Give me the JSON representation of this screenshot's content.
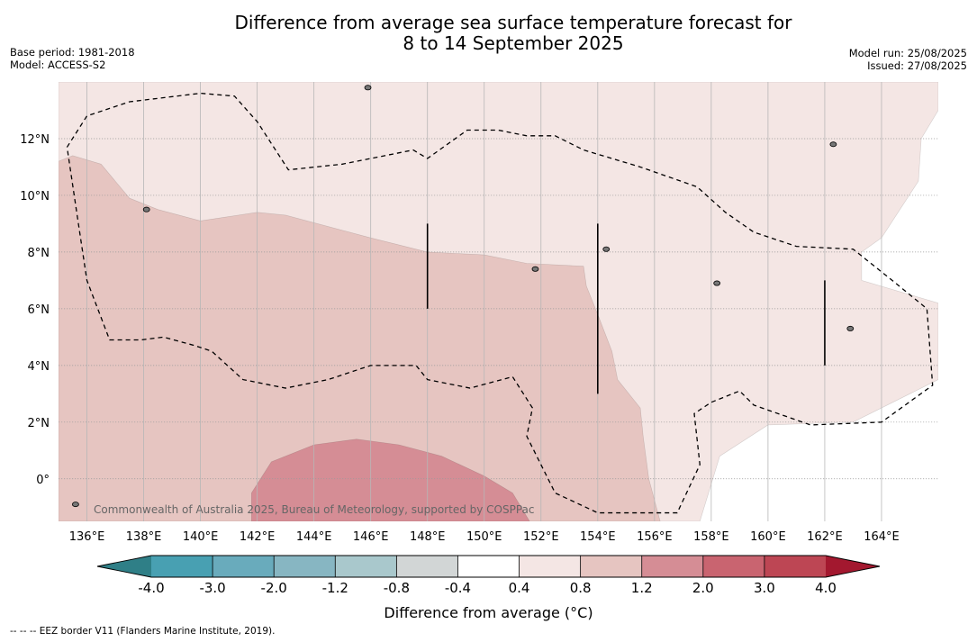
{
  "header": {
    "title_line1": "Difference from average sea surface temperature forecast for",
    "title_line2": "8 to 14 September 2025",
    "base_period": "Base period: 1981-2018",
    "model": "Model: ACCESS-S2",
    "model_run": "Model run: 25/08/2025",
    "issued": "Issued: 27/08/2025"
  },
  "chart_data": {
    "type": "heatmap",
    "title": "Difference from average sea surface temperature forecast for 8 to 14 September 2025",
    "xlabel": "",
    "ylabel": "",
    "xlim": [
      135,
      166
    ],
    "ylim": [
      -1.5,
      14
    ],
    "x_ticks": [
      136,
      138,
      140,
      142,
      144,
      146,
      148,
      150,
      152,
      154,
      156,
      158,
      160,
      162,
      164
    ],
    "y_ticks": [
      0,
      2,
      4,
      6,
      8,
      10,
      12
    ],
    "x_tick_labels": [
      "136°E",
      "138°E",
      "140°E",
      "142°E",
      "144°E",
      "146°E",
      "148°E",
      "150°E",
      "152°E",
      "154°E",
      "156°E",
      "158°E",
      "160°E",
      "162°E",
      "164°E"
    ],
    "y_tick_labels": [
      "0°",
      "2°N",
      "4°N",
      "6°N",
      "8°N",
      "10°N",
      "12°N"
    ],
    "grid": true,
    "colorbar": {
      "label": "Difference from average (°C)",
      "levels": [
        -4.0,
        -3.0,
        -2.0,
        -1.2,
        -0.8,
        -0.4,
        0.4,
        0.8,
        1.2,
        2.0,
        3.0,
        4.0
      ],
      "tick_labels": [
        "-4.0",
        "-3.0",
        "-2.0",
        "-1.2",
        "-0.8",
        "-0.4",
        "0.4",
        "0.8",
        "1.2",
        "2.0",
        "3.0",
        "4.0"
      ],
      "colors": [
        "#2f7f87",
        "#48a0b2",
        "#69abbc",
        "#87b6c2",
        "#a9c8cc",
        "#d2d6d6",
        "#ffffff",
        "#f4e6e4",
        "#e6c5c1",
        "#d58d95",
        "#c96470",
        "#bd4654",
        "#a3182f"
      ],
      "extend": "both"
    },
    "regions": [
      {
        "category": "0.4 to 0.8",
        "color": "#f4e6e4",
        "points": [
          [
            135,
            14
          ],
          [
            166,
            14
          ],
          [
            166,
            13
          ],
          [
            165.4,
            12
          ],
          [
            165.3,
            10.5
          ],
          [
            164,
            8.5
          ],
          [
            163.3,
            8
          ],
          [
            163.3,
            7
          ],
          [
            166,
            6.2
          ],
          [
            166,
            3.5
          ],
          [
            165,
            3
          ],
          [
            163,
            2
          ],
          [
            160,
            1.9
          ],
          [
            158.3,
            0.8
          ],
          [
            157.6,
            -1.5
          ],
          [
            135,
            -1.5
          ]
        ]
      },
      {
        "category": "0.8 to 1.2",
        "color": "#e6c5c1",
        "points": [
          [
            135,
            11.2
          ],
          [
            135.5,
            11.4
          ],
          [
            136.5,
            11.1
          ],
          [
            137.5,
            9.9
          ],
          [
            138.5,
            9.5
          ],
          [
            140,
            9.1
          ],
          [
            142,
            9.4
          ],
          [
            143,
            9.3
          ],
          [
            144.5,
            8.9
          ],
          [
            146,
            8.5
          ],
          [
            148,
            8.0
          ],
          [
            150,
            7.9
          ],
          [
            151.5,
            7.6
          ],
          [
            153.5,
            7.5
          ],
          [
            153.6,
            6.8
          ],
          [
            154,
            5.8
          ],
          [
            154.5,
            4.5
          ],
          [
            154.7,
            3.5
          ],
          [
            155.5,
            2.5
          ],
          [
            155.6,
            1.5
          ],
          [
            155.8,
            0
          ],
          [
            156.2,
            -1.5
          ],
          [
            135,
            -1.5
          ]
        ]
      },
      {
        "category": "1.2 to 2.0",
        "color": "#d58d95",
        "points": [
          [
            141.8,
            -1.5
          ],
          [
            141.8,
            -0.5
          ],
          [
            142.5,
            0.6
          ],
          [
            144,
            1.2
          ],
          [
            145.5,
            1.4
          ],
          [
            147,
            1.2
          ],
          [
            148.5,
            0.8
          ],
          [
            150,
            0.1
          ],
          [
            151,
            -0.5
          ],
          [
            151.6,
            -1.5
          ]
        ]
      }
    ],
    "contour_lines": [
      {
        "style": "dashed",
        "points": [
          [
            135.3,
            11.7
          ],
          [
            136,
            12.8
          ],
          [
            137.5,
            13.3
          ],
          [
            140,
            13.6
          ],
          [
            141.2,
            13.5
          ],
          [
            142,
            12.6
          ],
          [
            143.1,
            10.9
          ],
          [
            145,
            11.1
          ],
          [
            147.5,
            11.6
          ],
          [
            148,
            11.3
          ],
          [
            149.4,
            12.3
          ],
          [
            150.5,
            12.3
          ],
          [
            151.5,
            12.1
          ],
          [
            152.5,
            12.1
          ],
          [
            153.5,
            11.6
          ],
          [
            155.5,
            11.0
          ],
          [
            157.5,
            10.3
          ],
          [
            158.5,
            9.4
          ],
          [
            159.5,
            8.7
          ],
          [
            161,
            8.2
          ],
          [
            163,
            8.1
          ],
          [
            163.5,
            7.7
          ],
          [
            164.5,
            6.9
          ],
          [
            165.6,
            6.0
          ],
          [
            165.8,
            3.3
          ],
          [
            164,
            2.0
          ],
          [
            161.5,
            1.9
          ],
          [
            159.5,
            2.6
          ],
          [
            159,
            3.1
          ],
          [
            158,
            2.7
          ],
          [
            157.4,
            2.3
          ],
          [
            157.6,
            0.5
          ],
          [
            156.8,
            -1.2
          ],
          [
            154,
            -1.2
          ],
          [
            152.5,
            -0.5
          ],
          [
            151.5,
            1.5
          ],
          [
            151.7,
            2.5
          ],
          [
            151,
            3.6
          ],
          [
            149.5,
            3.2
          ],
          [
            148,
            3.5
          ],
          [
            147.6,
            4.0
          ],
          [
            146,
            4.0
          ],
          [
            144.5,
            3.5
          ],
          [
            143,
            3.2
          ],
          [
            141.5,
            3.5
          ],
          [
            140.4,
            4.5
          ],
          [
            139.8,
            4.7
          ],
          [
            138.7,
            5.0
          ],
          [
            137.9,
            4.9
          ],
          [
            136.8,
            4.9
          ],
          [
            136,
            7.0
          ],
          [
            135.7,
            9.0
          ],
          [
            135.3,
            11.7
          ]
        ]
      }
    ],
    "vertical_markers": [
      {
        "lon": 148,
        "lat_range": [
          6.0,
          9.0
        ]
      },
      {
        "lon": 154,
        "lat_range": [
          3.0,
          9.0
        ]
      },
      {
        "lon": 162,
        "lat_range": [
          4.0,
          7.0
        ]
      }
    ],
    "islands": [
      {
        "lon": 145.9,
        "lat": 13.8
      },
      {
        "lon": 138.1,
        "lat": 9.5
      },
      {
        "lon": 151.8,
        "lat": 7.4
      },
      {
        "lon": 158.2,
        "lat": 6.9
      },
      {
        "lon": 162.9,
        "lat": 5.3
      },
      {
        "lon": 135.6,
        "lat": -0.9
      },
      {
        "lon": 154.3,
        "lat": 8.1
      },
      {
        "lon": 162.3,
        "lat": 11.8
      }
    ],
    "annotation": "Commonwealth of Australia 2025, Bureau of Meteorology, supported by COSPPac"
  },
  "footer": {
    "colorbar_label": "Difference from average (°C)",
    "eez_note": "--  --  -- EEZ border V11 (Flanders Marine Institute, 2019)."
  }
}
